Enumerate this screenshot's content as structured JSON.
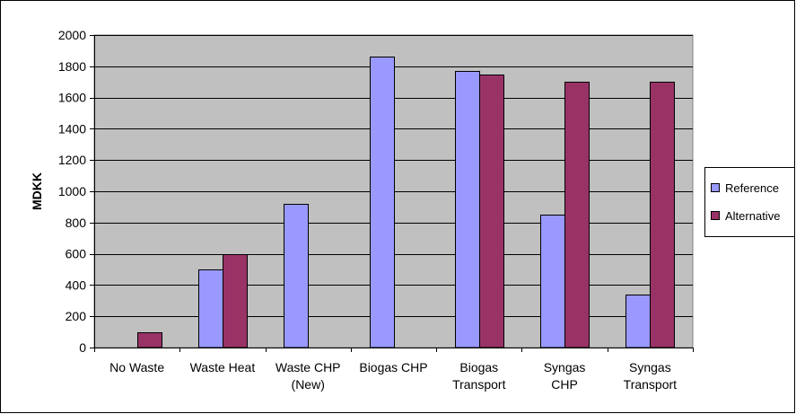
{
  "chart_data": {
    "type": "bar",
    "title": "",
    "xlabel": "",
    "ylabel": "MDKK",
    "ylim": [
      0,
      2000
    ],
    "yticks": [
      0,
      200,
      400,
      600,
      800,
      1000,
      1200,
      1400,
      1600,
      1800,
      2000
    ],
    "grid": true,
    "legend_position": "right",
    "categories": [
      [
        "No Waste"
      ],
      [
        "Waste Heat"
      ],
      [
        "Waste CHP",
        "(New)"
      ],
      [
        "Biogas CHP"
      ],
      [
        "Biogas",
        "Transport"
      ],
      [
        "Syngas",
        "CHP"
      ],
      [
        "Syngas",
        "Transport"
      ]
    ],
    "series": [
      {
        "name": "Reference",
        "color": "#9999FF",
        "values": [
          0,
          500,
          920,
          1860,
          1770,
          850,
          340
        ]
      },
      {
        "name": "Alternative",
        "color": "#993366",
        "values": [
          100,
          595,
          0,
          0,
          1745,
          1700,
          1700
        ]
      }
    ],
    "colors": {
      "plot_background": "#C0C0C0",
      "gridline": "#000000",
      "bar_outline": "#000000"
    }
  }
}
